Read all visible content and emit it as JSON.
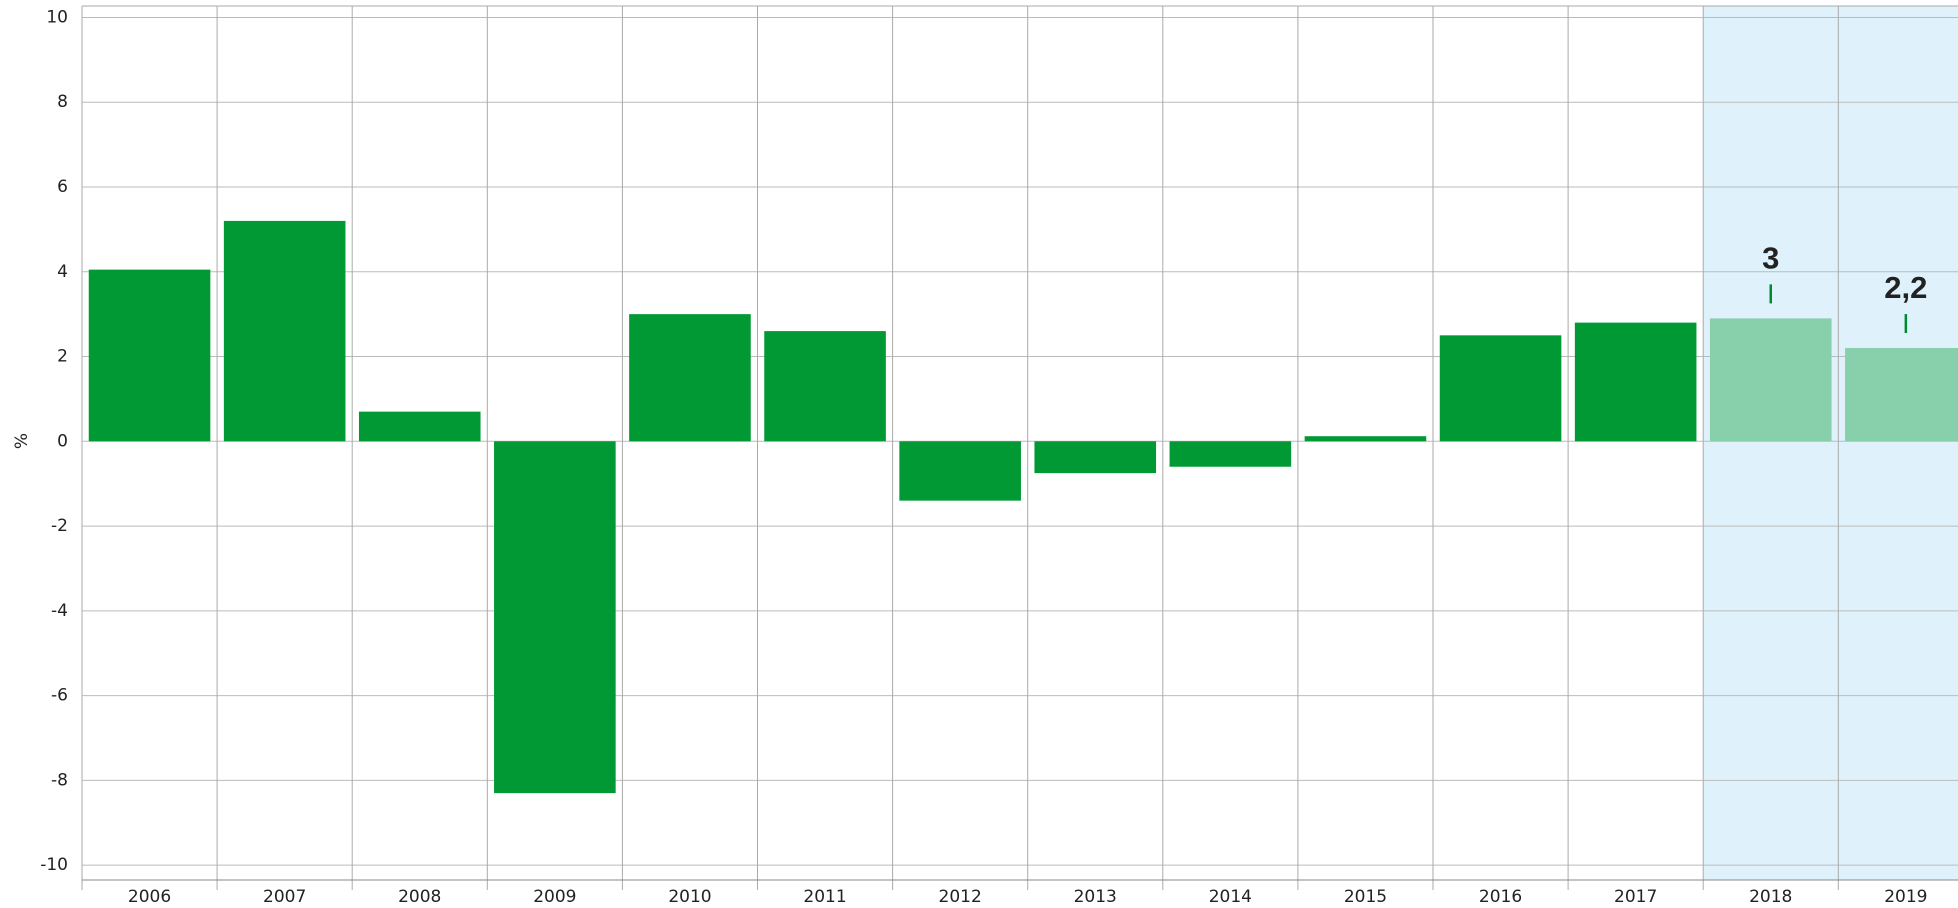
{
  "chart_data": {
    "type": "bar",
    "y_label": "%",
    "categories": [
      "2006",
      "2007",
      "2008",
      "2009",
      "2010",
      "2011",
      "2012",
      "2013",
      "2014",
      "2015",
      "2016",
      "2017",
      "2018",
      "2019"
    ],
    "values": [
      4.05,
      5.2,
      0.7,
      -8.3,
      3.0,
      2.6,
      -1.4,
      -0.75,
      -0.6,
      0.12,
      2.5,
      2.8,
      2.9,
      2.2
    ],
    "value_labels": [
      null,
      null,
      null,
      null,
      null,
      null,
      null,
      null,
      null,
      null,
      null,
      null,
      "3",
      "2,2"
    ],
    "colors": [
      "#009933",
      "#009933",
      "#009933",
      "#009933",
      "#009933",
      "#009933",
      "#009933",
      "#009933",
      "#009933",
      "#009933",
      "#009933",
      "#009933",
      "#88cfab",
      "#88cfab"
    ],
    "shaded": [
      false,
      false,
      false,
      false,
      false,
      false,
      false,
      false,
      false,
      false,
      false,
      false,
      true,
      true
    ],
    "shade_color": "#dff2fc",
    "label_color": "#008a2e",
    "ylim": [
      -10.35,
      10.27
    ],
    "yticks": [
      -10,
      -8,
      -6,
      -4,
      -2,
      0,
      2,
      4,
      6,
      8,
      10
    ],
    "grid": true
  }
}
